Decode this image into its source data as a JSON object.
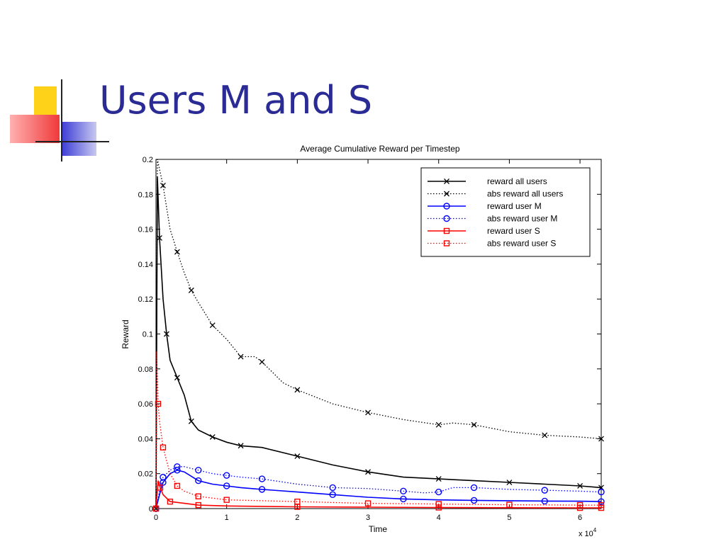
{
  "slide": {
    "title": "Users M and S"
  },
  "colors": {
    "title": "#2b2b95",
    "deco_yellow": "#ffd21a",
    "deco_red": "#f03a3a",
    "deco_blue": "#3a3ad6"
  },
  "chart_data": {
    "type": "line",
    "title": "Average Cumulative Reward per Timestep",
    "xlabel": "Time",
    "ylabel": "Reward",
    "x_multiplier_label": "x 10",
    "x_multiplier_exp": "4",
    "xlim": [
      0,
      6.3
    ],
    "ylim": [
      0,
      0.2
    ],
    "x_ticks": [
      "0",
      "1",
      "2",
      "3",
      "4",
      "5",
      "6"
    ],
    "y_ticks": [
      "0",
      "0.02",
      "0.04",
      "0.06",
      "0.08",
      "0.1",
      "0.12",
      "0.14",
      "0.16",
      "0.18",
      "0.2"
    ],
    "grid": false,
    "legend_position": "top-right",
    "series": [
      {
        "name": "reward all users",
        "color": "#000000",
        "style": "solid",
        "marker": "x",
        "points": [
          [
            0,
            0
          ],
          [
            0.02,
            0.19
          ],
          [
            0.05,
            0.155
          ],
          [
            0.1,
            0.12
          ],
          [
            0.15,
            0.1
          ],
          [
            0.2,
            0.085
          ],
          [
            0.3,
            0.075
          ],
          [
            0.4,
            0.065
          ],
          [
            0.5,
            0.05
          ],
          [
            0.6,
            0.045
          ],
          [
            0.8,
            0.041
          ],
          [
            1.0,
            0.038
          ],
          [
            1.2,
            0.036
          ],
          [
            1.5,
            0.035
          ],
          [
            2.0,
            0.03
          ],
          [
            2.5,
            0.025
          ],
          [
            3.0,
            0.021
          ],
          [
            3.5,
            0.018
          ],
          [
            4.0,
            0.017
          ],
          [
            4.5,
            0.016
          ],
          [
            5.0,
            0.015
          ],
          [
            5.5,
            0.014
          ],
          [
            6.0,
            0.013
          ],
          [
            6.3,
            0.012
          ]
        ]
      },
      {
        "name": "abs reward all users",
        "color": "#000000",
        "style": "dotted",
        "marker": "x",
        "points": [
          [
            0,
            0
          ],
          [
            0.02,
            0.2
          ],
          [
            0.1,
            0.185
          ],
          [
            0.2,
            0.16
          ],
          [
            0.3,
            0.147
          ],
          [
            0.4,
            0.135
          ],
          [
            0.5,
            0.125
          ],
          [
            0.6,
            0.118
          ],
          [
            0.8,
            0.105
          ],
          [
            1.0,
            0.097
          ],
          [
            1.2,
            0.087
          ],
          [
            1.4,
            0.087
          ],
          [
            1.5,
            0.084
          ],
          [
            1.8,
            0.072
          ],
          [
            2.0,
            0.068
          ],
          [
            2.5,
            0.06
          ],
          [
            3.0,
            0.055
          ],
          [
            3.5,
            0.051
          ],
          [
            4.0,
            0.048
          ],
          [
            4.2,
            0.049
          ],
          [
            4.5,
            0.048
          ],
          [
            5.0,
            0.044
          ],
          [
            5.5,
            0.042
          ],
          [
            6.0,
            0.041
          ],
          [
            6.3,
            0.04
          ]
        ]
      },
      {
        "name": "reward user M",
        "color": "#0000ff",
        "style": "solid",
        "marker": "o",
        "points": [
          [
            0,
            0
          ],
          [
            0.05,
            0.008
          ],
          [
            0.1,
            0.015
          ],
          [
            0.2,
            0.02
          ],
          [
            0.3,
            0.022
          ],
          [
            0.4,
            0.021
          ],
          [
            0.6,
            0.016
          ],
          [
            0.8,
            0.014
          ],
          [
            1.0,
            0.013
          ],
          [
            1.2,
            0.012
          ],
          [
            1.5,
            0.011
          ],
          [
            2.0,
            0.0095
          ],
          [
            2.5,
            0.008
          ],
          [
            3.0,
            0.0065
          ],
          [
            3.5,
            0.0055
          ],
          [
            4.0,
            0.005
          ],
          [
            4.5,
            0.0047
          ],
          [
            5.0,
            0.0045
          ],
          [
            5.5,
            0.0043
          ],
          [
            6.0,
            0.0042
          ],
          [
            6.3,
            0.004
          ]
        ]
      },
      {
        "name": "abs reward user M",
        "color": "#0000ff",
        "style": "dotted",
        "marker": "o",
        "points": [
          [
            0,
            0
          ],
          [
            0.05,
            0.01
          ],
          [
            0.1,
            0.018
          ],
          [
            0.2,
            0.022
          ],
          [
            0.3,
            0.024
          ],
          [
            0.4,
            0.024
          ],
          [
            0.6,
            0.022
          ],
          [
            0.8,
            0.02
          ],
          [
            1.0,
            0.019
          ],
          [
            1.2,
            0.018
          ],
          [
            1.5,
            0.017
          ],
          [
            2.0,
            0.014
          ],
          [
            2.5,
            0.012
          ],
          [
            3.0,
            0.0115
          ],
          [
            3.5,
            0.01
          ],
          [
            3.8,
            0.009
          ],
          [
            4.0,
            0.0095
          ],
          [
            4.2,
            0.012
          ],
          [
            4.5,
            0.012
          ],
          [
            5.0,
            0.011
          ],
          [
            5.5,
            0.0105
          ],
          [
            6.0,
            0.01
          ],
          [
            6.3,
            0.0095
          ]
        ]
      },
      {
        "name": "reward user S",
        "color": "#ff0000",
        "style": "solid",
        "marker": "s",
        "points": [
          [
            0,
            0
          ],
          [
            0.03,
            0.016
          ],
          [
            0.06,
            0.012
          ],
          [
            0.1,
            0.008
          ],
          [
            0.2,
            0.004
          ],
          [
            0.4,
            0.003
          ],
          [
            0.6,
            0.002
          ],
          [
            1.0,
            0.0015
          ],
          [
            2.0,
            0.001
          ],
          [
            3.0,
            0.0008
          ],
          [
            4.0,
            0.0006
          ],
          [
            5.0,
            0.0005
          ],
          [
            6.0,
            0.0004
          ],
          [
            6.3,
            0.0004
          ]
        ]
      },
      {
        "name": "abs reward user S",
        "color": "#ff0000",
        "style": "dotted",
        "marker": "s",
        "points": [
          [
            0,
            0
          ],
          [
            0.01,
            0.09
          ],
          [
            0.03,
            0.06
          ],
          [
            0.05,
            0.05
          ],
          [
            0.1,
            0.035
          ],
          [
            0.2,
            0.02
          ],
          [
            0.3,
            0.013
          ],
          [
            0.4,
            0.01
          ],
          [
            0.6,
            0.007
          ],
          [
            0.8,
            0.006
          ],
          [
            1.0,
            0.005
          ],
          [
            1.5,
            0.0045
          ],
          [
            2.0,
            0.004
          ],
          [
            2.5,
            0.0035
          ],
          [
            3.0,
            0.003
          ],
          [
            3.5,
            0.0028
          ],
          [
            4.0,
            0.0026
          ],
          [
            4.5,
            0.0024
          ],
          [
            5.0,
            0.0022
          ],
          [
            5.5,
            0.0021
          ],
          [
            6.0,
            0.002
          ],
          [
            6.3,
            0.002
          ]
        ]
      }
    ]
  }
}
